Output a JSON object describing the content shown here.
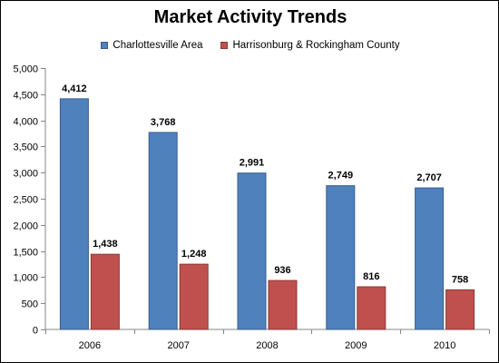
{
  "chart_data": {
    "type": "bar",
    "title": "Market Activity Trends",
    "categories": [
      "2006",
      "2007",
      "2008",
      "2009",
      "2010"
    ],
    "series": [
      {
        "name": "Charlottesville Area",
        "values": [
          4412,
          3768,
          2991,
          2749,
          2707
        ],
        "color": "#4f81bd",
        "border": "#385d8a"
      },
      {
        "name": "Harrisonburg & Rockingham County",
        "values": [
          1438,
          1248,
          936,
          816,
          758
        ],
        "color": "#c0504d",
        "border": "#8c3836"
      }
    ],
    "data_labels": [
      [
        "4,412",
        "3,768",
        "2,991",
        "2,749",
        "2,707"
      ],
      [
        "1,438",
        "1,248",
        "936",
        "816",
        "758"
      ]
    ],
    "ylim": [
      0,
      5000
    ],
    "yticks": [
      0,
      500,
      1000,
      1500,
      2000,
      2500,
      3000,
      3500,
      4000,
      4500,
      5000
    ],
    "ytick_labels": [
      "0",
      "500",
      "1,000",
      "1,500",
      "2,000",
      "2,500",
      "3,000",
      "3,500",
      "4,000",
      "4,500",
      "5,000"
    ],
    "grid": false,
    "legend_position": "top",
    "xlabel": "",
    "ylabel": ""
  }
}
